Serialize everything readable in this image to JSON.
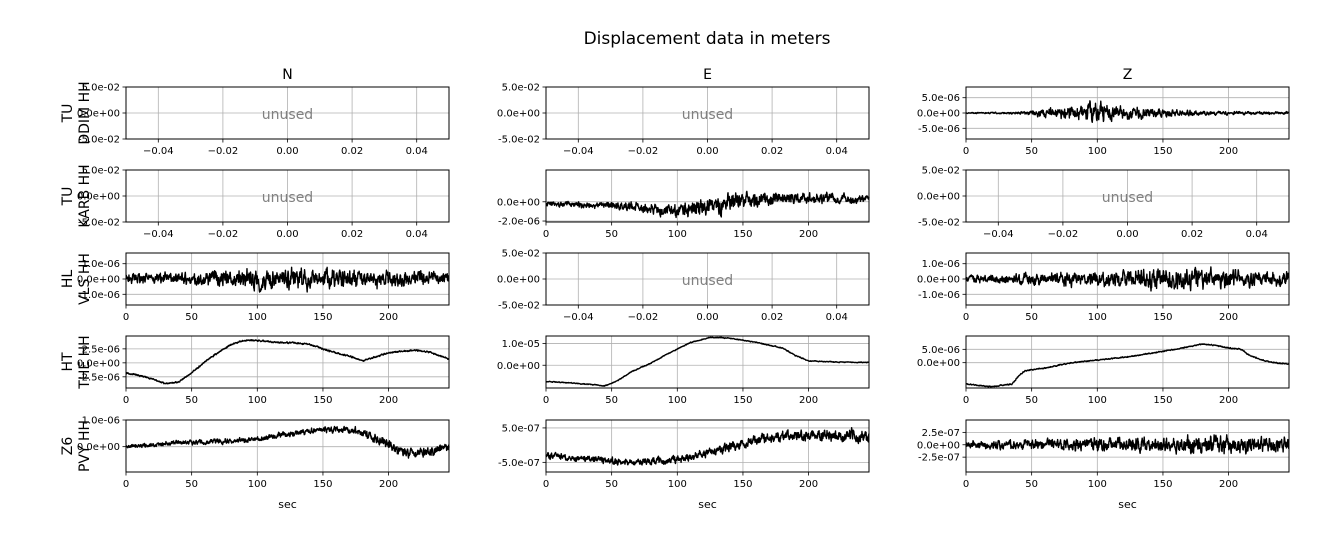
{
  "chart_data": {
    "type": "line",
    "title": "Displacement data in meters",
    "columns": [
      "N",
      "E",
      "Z"
    ],
    "rows": [
      {
        "line1": "TU",
        "line2": "DDIM HH"
      },
      {
        "line1": "TU",
        "line2": "KARB HH"
      },
      {
        "line1": "HL",
        "line2": "VLS HH"
      },
      {
        "line1": "HT",
        "line2": "THE HH"
      },
      {
        "line1": "Z6",
        "line2": "PVY HH"
      }
    ],
    "xlabel": "sec",
    "unused_label": "unused",
    "unused_panel": {
      "xlim": [
        -0.05,
        0.05
      ],
      "ylim": [
        -0.05,
        0.05
      ],
      "xticks": [
        -0.04,
        -0.02,
        0.0,
        0.02,
        0.04
      ],
      "xticklabels": [
        "−0.04",
        "−0.02",
        "0.00",
        "0.02",
        "0.04"
      ],
      "yticks": [
        0.05,
        0.0,
        -0.05
      ],
      "yticklabels": [
        "5.0e-02",
        "0.0e+00",
        "-5.0e-02"
      ]
    },
    "time_xlim": [
      0,
      246
    ],
    "time_xticks": [
      0,
      50,
      100,
      150,
      200
    ],
    "time_xticklabels": [
      "0",
      "50",
      "100",
      "150",
      "200"
    ],
    "panels": [
      {
        "row": 0,
        "col": 0,
        "unused": true
      },
      {
        "row": 0,
        "col": 1,
        "unused": true
      },
      {
        "row": 0,
        "col": 2,
        "unused": false,
        "ylim": [
          -8.5e-06,
          8.5e-06
        ],
        "yticks": [
          5e-06,
          0,
          -5e-06
        ],
        "yticklabels": [
          "5.0e-06",
          "0.0e+00",
          "-5.0e-06"
        ],
        "series": {
          "kind": "burst",
          "t": [
            0,
            40,
            60,
            80,
            100,
            120,
            140,
            160,
            190,
            246
          ],
          "a": [
            2e-07,
            5e-07,
            1.8e-06,
            3e-06,
            4.5e-06,
            3e-06,
            2.2e-06,
            1.3e-06,
            8e-07,
            6e-07
          ]
        }
      },
      {
        "row": 1,
        "col": 0,
        "unused": true
      },
      {
        "row": 1,
        "col": 1,
        "unused": false,
        "ylim": [
          -2.1e-06,
          3.3e-06
        ],
        "yticks": [
          0,
          -2e-06
        ],
        "yticklabels": [
          "0.0e+00",
          "-2.0e-06"
        ],
        "series": {
          "kind": "noise_trend",
          "trend_t": [
            0,
            50,
            80,
            110,
            130,
            150,
            200,
            246
          ],
          "trend_v": [
            -2e-07,
            -4e-07,
            -8e-07,
            -9e-07,
            -4e-07,
            2e-07,
            4e-07,
            2e-07
          ],
          "t": [
            0,
            50,
            90,
            120,
            140,
            180,
            246
          ],
          "a": [
            3e-07,
            5e-07,
            8e-07,
            1.3e-06,
            1.3e-06,
            8e-07,
            6e-07
          ]
        }
      },
      {
        "row": 1,
        "col": 2,
        "unused": true
      },
      {
        "row": 2,
        "col": 0,
        "unused": false,
        "ylim": [
          -1.7e-06,
          1.7e-06
        ],
        "yticks": [
          1e-06,
          0,
          -1e-06
        ],
        "yticklabels": [
          "1.0e-06",
          "0.0e+00",
          "-1.0e-06"
        ],
        "series": {
          "kind": "noise",
          "t": [
            0,
            60,
            100,
            140,
            200,
            246
          ],
          "a": [
            4e-07,
            6e-07,
            9e-07,
            9e-07,
            7e-07,
            6e-07
          ]
        }
      },
      {
        "row": 2,
        "col": 1,
        "unused": true
      },
      {
        "row": 2,
        "col": 2,
        "unused": false,
        "ylim": [
          -1.7e-06,
          1.7e-06
        ],
        "yticks": [
          1e-06,
          0,
          -1e-06
        ],
        "yticklabels": [
          "1.0e-06",
          "0.0e+00",
          "-1.0e-06"
        ],
        "series": {
          "kind": "noise",
          "t": [
            0,
            60,
            120,
            160,
            200,
            246
          ],
          "a": [
            3e-07,
            5e-07,
            8e-07,
            1e-06,
            8e-07,
            6e-07
          ]
        }
      },
      {
        "row": 3,
        "col": 0,
        "unused": false,
        "ylim": [
          -4.5e-06,
          4.8e-06
        ],
        "yticks": [
          2.5e-06,
          0,
          -2.5e-06
        ],
        "yticklabels": [
          "2.5e-06",
          "0.0e+00",
          "-2.5e-06"
        ],
        "series": {
          "kind": "smooth",
          "t": [
            0,
            15,
            30,
            40,
            50,
            60,
            70,
            80,
            90,
            100,
            110,
            120,
            130,
            140,
            150,
            160,
            170,
            180,
            190,
            200,
            210,
            220,
            230,
            240,
            246
          ],
          "v": [
            -1.8e-06,
            -2.5e-06,
            -3.7e-06,
            -3.4e-06,
            -1.8e-06,
            2e-07,
            1.8e-06,
            3.3e-06,
            4e-06,
            4e-06,
            3.8e-06,
            3.6e-06,
            3.6e-06,
            3.3e-06,
            2.5e-06,
            1.8e-06,
            1.2e-06,
            4e-07,
            1e-06,
            1.8e-06,
            2.1e-06,
            2.2e-06,
            2e-06,
            1.2e-06,
            7e-07
          ],
          "noise": 2e-07
        }
      },
      {
        "row": 3,
        "col": 1,
        "unused": false,
        "ylim": [
          -1.05e-05,
          1.35e-05
        ],
        "yticks": [
          1e-05,
          0
        ],
        "yticklabels": [
          "1.0e-05",
          "0.0e+00"
        ],
        "series": {
          "kind": "smooth",
          "t": [
            0,
            20,
            40,
            45,
            55,
            65,
            80,
            95,
            110,
            125,
            140,
            160,
            180,
            190,
            200,
            220,
            246
          ],
          "v": [
            -7.5e-06,
            -8.2e-06,
            -9.2e-06,
            -9.5e-06,
            -7e-06,
            -3e-06,
            1e-06,
            6e-06,
            1.05e-05,
            1.28e-05,
            1.25e-05,
            1.05e-05,
            8e-06,
            4.5e-06,
            2e-06,
            1.5e-06,
            1.3e-06
          ],
          "noise": 3e-07
        }
      },
      {
        "row": 3,
        "col": 2,
        "unused": false,
        "ylim": [
          -9.5e-06,
          1e-05
        ],
        "yticks": [
          5e-06,
          0
        ],
        "yticklabels": [
          "5.0e-06",
          "0.0e+00"
        ],
        "series": {
          "kind": "smooth",
          "t": [
            0,
            20,
            35,
            40,
            45,
            60,
            80,
            100,
            120,
            140,
            160,
            170,
            180,
            190,
            200,
            210,
            215,
            225,
            235,
            246
          ],
          "v": [
            -8e-06,
            -9e-06,
            -8e-06,
            -5e-06,
            -3e-06,
            -2e-06,
            0,
            1e-06,
            2e-06,
            3.5e-06,
            5e-06,
            6e-06,
            7e-06,
            6.5e-06,
            5.5e-06,
            5e-06,
            3e-06,
            1e-06,
            0,
            -5e-07
          ],
          "noise": 3e-07
        }
      },
      {
        "row": 4,
        "col": 0,
        "unused": false,
        "ylim": [
          -9.5e-07,
          1e-06
        ],
        "yticks": [
          1e-06,
          0
        ],
        "yticklabels": [
          "1.0e-06",
          "0.0e+00"
        ],
        "series": {
          "kind": "noise_trend",
          "trend_t": [
            0,
            40,
            80,
            100,
            130,
            150,
            175,
            195,
            205,
            215,
            230,
            246
          ],
          "trend_v": [
            0,
            1.5e-07,
            2e-07,
            3e-07,
            5e-07,
            6.5e-07,
            6e-07,
            2e-07,
            -1.5e-07,
            -2.5e-07,
            -2e-07,
            0
          ],
          "t": [
            0,
            100,
            180,
            200,
            246
          ],
          "a": [
            1e-07,
            1.3e-07,
            1.8e-07,
            2.8e-07,
            2e-07
          ]
        }
      },
      {
        "row": 4,
        "col": 1,
        "unused": false,
        "ylim": [
          -7.8e-07,
          7.3e-07
        ],
        "yticks": [
          5e-07,
          -5e-07
        ],
        "yticklabels": [
          "5.0e-07",
          "-5.0e-07"
        ],
        "series": {
          "kind": "noise_trend",
          "trend_t": [
            0,
            30,
            60,
            90,
            110,
            130,
            150,
            170,
            190,
            210,
            230,
            246
          ],
          "trend_v": [
            -3e-07,
            -4e-07,
            -5e-07,
            -4.5e-07,
            -3.5e-07,
            -1.5e-07,
            5e-08,
            2e-07,
            2.8e-07,
            3e-07,
            2.8e-07,
            2.5e-07
          ],
          "t": [
            0,
            100,
            150,
            246
          ],
          "a": [
            1.2e-07,
            1.4e-07,
            2e-07,
            2.5e-07
          ]
        }
      },
      {
        "row": 4,
        "col": 2,
        "unused": false,
        "ylim": [
          -5.5e-07,
          5e-07
        ],
        "yticks": [
          2.5e-07,
          0,
          -2.5e-07
        ],
        "yticklabels": [
          "2.5e-07",
          "0.0e+00",
          "-2.5e-07"
        ],
        "series": {
          "kind": "noise",
          "t": [
            0,
            60,
            110,
            160,
            200,
            246
          ],
          "a": [
            1e-07,
            1.5e-07,
            1.8e-07,
            2e-07,
            2.4e-07,
            2e-07
          ]
        }
      }
    ]
  }
}
